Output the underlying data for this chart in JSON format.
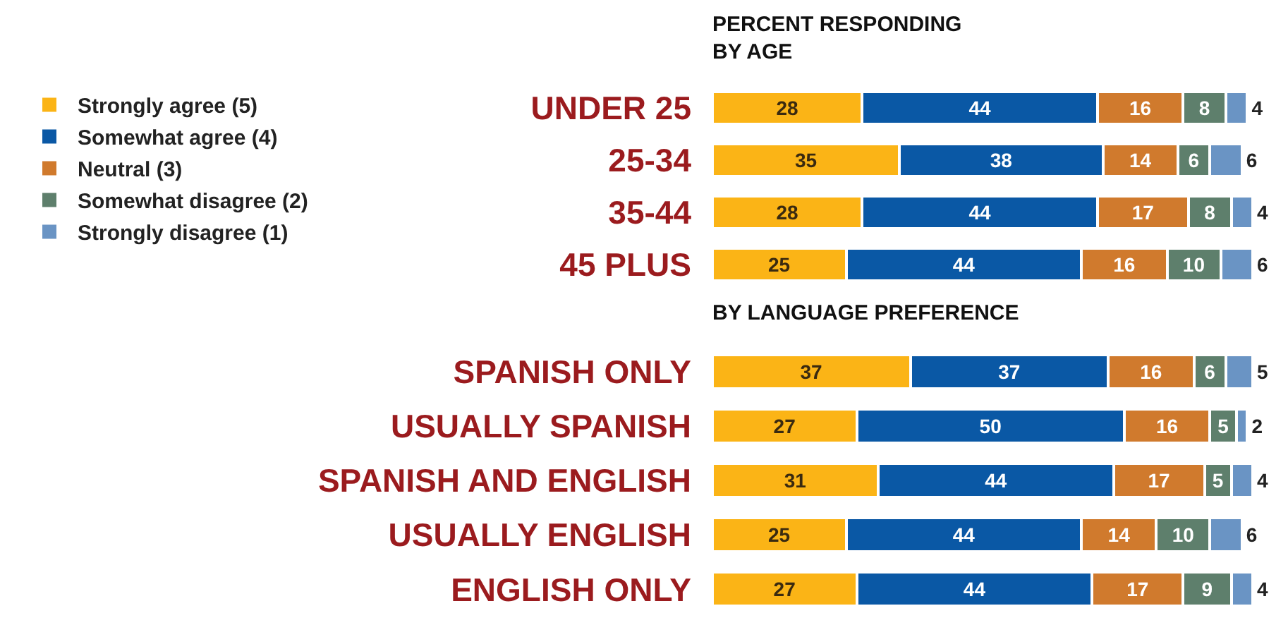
{
  "chart_data": [
    {
      "type": "bar",
      "title": "PERCENT RESPONDING\nBY AGE",
      "orientation": "horizontal",
      "stacked": true,
      "data_labels": true,
      "legend": "left",
      "tick_labels": "y",
      "xlim": [
        0,
        101
      ],
      "categories": [
        "UNDER 25",
        "25-34",
        "35-44",
        "45 PLUS"
      ],
      "series": [
        {
          "name": "Strongly agree (5)",
          "color": "#fbb416",
          "values": [
            28,
            35,
            28,
            25
          ]
        },
        {
          "name": "Somewhat agree (4)",
          "color": "#0a58a5",
          "values": [
            44,
            38,
            44,
            44
          ]
        },
        {
          "name": "Neutral (3)",
          "color": "#d07a2d",
          "values": [
            16,
            14,
            17,
            16
          ]
        },
        {
          "name": "Somewhat disagree (2)",
          "color": "#5e7f6c",
          "values": [
            8,
            6,
            8,
            10
          ]
        },
        {
          "name": "Strongly disagree (1)",
          "color": "#6a94c4",
          "values": [
            4,
            6,
            4,
            6
          ]
        }
      ]
    },
    {
      "type": "bar",
      "title": "BY LANGUAGE PREFERENCE",
      "orientation": "horizontal",
      "stacked": true,
      "data_labels": true,
      "legend": false,
      "tick_labels": "y",
      "xlim": [
        0,
        101
      ],
      "categories": [
        "SPANISH ONLY",
        "USUALLY SPANISH",
        "SPANISH AND ENGLISH",
        "USUALLY ENGLISH",
        "ENGLISH ONLY"
      ],
      "series": [
        {
          "color": "#fbb416",
          "values": [
            37,
            27,
            31,
            25,
            27
          ]
        },
        {
          "color": "#0a58a5",
          "values": [
            37,
            50,
            44,
            44,
            44
          ]
        },
        {
          "color": "#d07a2d",
          "values": [
            16,
            16,
            17,
            14,
            17
          ]
        },
        {
          "color": "#5e7f6c",
          "values": [
            6,
            5,
            5,
            10,
            9
          ]
        },
        {
          "color": "#6a94c4",
          "values": [
            5,
            2,
            4,
            6,
            4
          ]
        }
      ]
    }
  ]
}
